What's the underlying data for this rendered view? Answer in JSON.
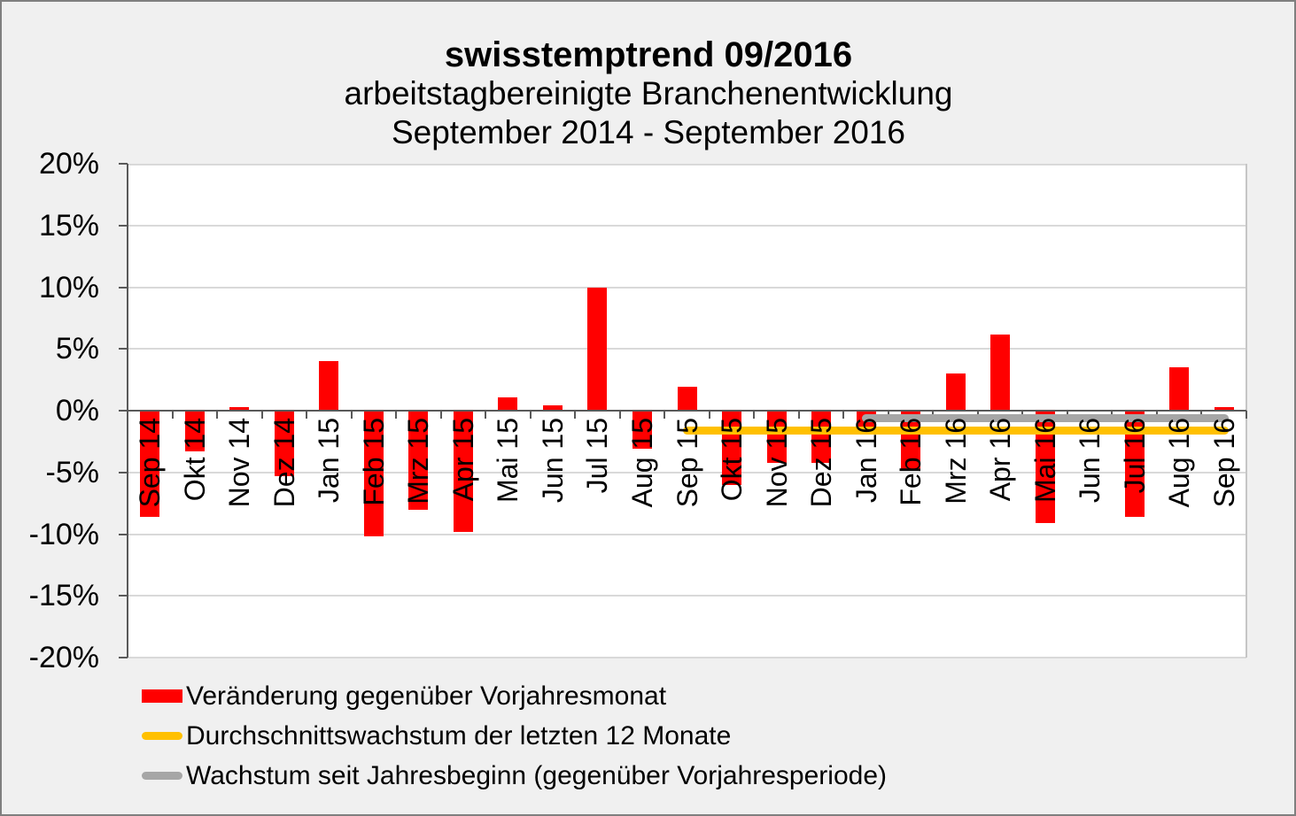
{
  "header": {
    "title": "swisstemptrend 09/2016",
    "subtitle_line1": "arbeitstagbereinigte Branchenentwicklung",
    "subtitle_line2": "September 2014 - September 2016"
  },
  "chart_data": {
    "type": "bar",
    "title": "swisstemptrend 09/2016",
    "subtitle": "arbeitstagbereinigte Branchenentwicklung September 2014 - September 2016",
    "categories": [
      "Sep 14",
      "Okt 14",
      "Nov 14",
      "Dez 14",
      "Jan 15",
      "Feb 15",
      "Mrz 15",
      "Apr 15",
      "Mai 15",
      "Jun 15",
      "Jul 15",
      "Aug 15",
      "Sep 15",
      "Okt 15",
      "Nov 15",
      "Dez 15",
      "Jan 16",
      "Feb 16",
      "Mrz 16",
      "Apr 16",
      "Mai 16",
      "Jun 16",
      "Jul 16",
      "Aug 16",
      "Sep 16"
    ],
    "series": [
      {
        "name": "Veränderung gegenüber Vorjahresmonat",
        "kind": "bar",
        "color": "#ff0000",
        "values": [
          -8.6,
          -3.3,
          0.3,
          -5.3,
          4.0,
          -10.2,
          -8.0,
          -9.8,
          1.1,
          0.4,
          10.0,
          -3.1,
          1.9,
          -6.0,
          -4.2,
          -4.2,
          -1.6,
          -4.7,
          3.0,
          6.2,
          -9.1,
          0.0,
          -8.6,
          3.5,
          0.3
        ]
      },
      {
        "name": "Durchschnittswachstum der letzten 12 Monate",
        "kind": "line",
        "color": "#ffc000",
        "value": -1.6,
        "from": "Sep 15",
        "to": "Sep 16"
      },
      {
        "name": "Wachstum seit Jahresbeginn (gegenüber Vorjahresperiode)",
        "kind": "line",
        "color": "#a6a6a6",
        "value": -0.6,
        "from": "Jan 16",
        "to": "Sep 16"
      }
    ],
    "ylim": [
      -20,
      20
    ],
    "ytick_step": 5,
    "ytick_labels": [
      "20%",
      "15%",
      "10%",
      "5%",
      "0%",
      "-5%",
      "-10%",
      "-15%",
      "-20%"
    ],
    "grid": true,
    "legend_position": "bottom-left",
    "colors": {
      "figure_background": "#f0f0f0",
      "plot_background": "#ffffff",
      "gridline": "#d9d9d9",
      "axis": "#595959",
      "text": "#000000"
    }
  }
}
